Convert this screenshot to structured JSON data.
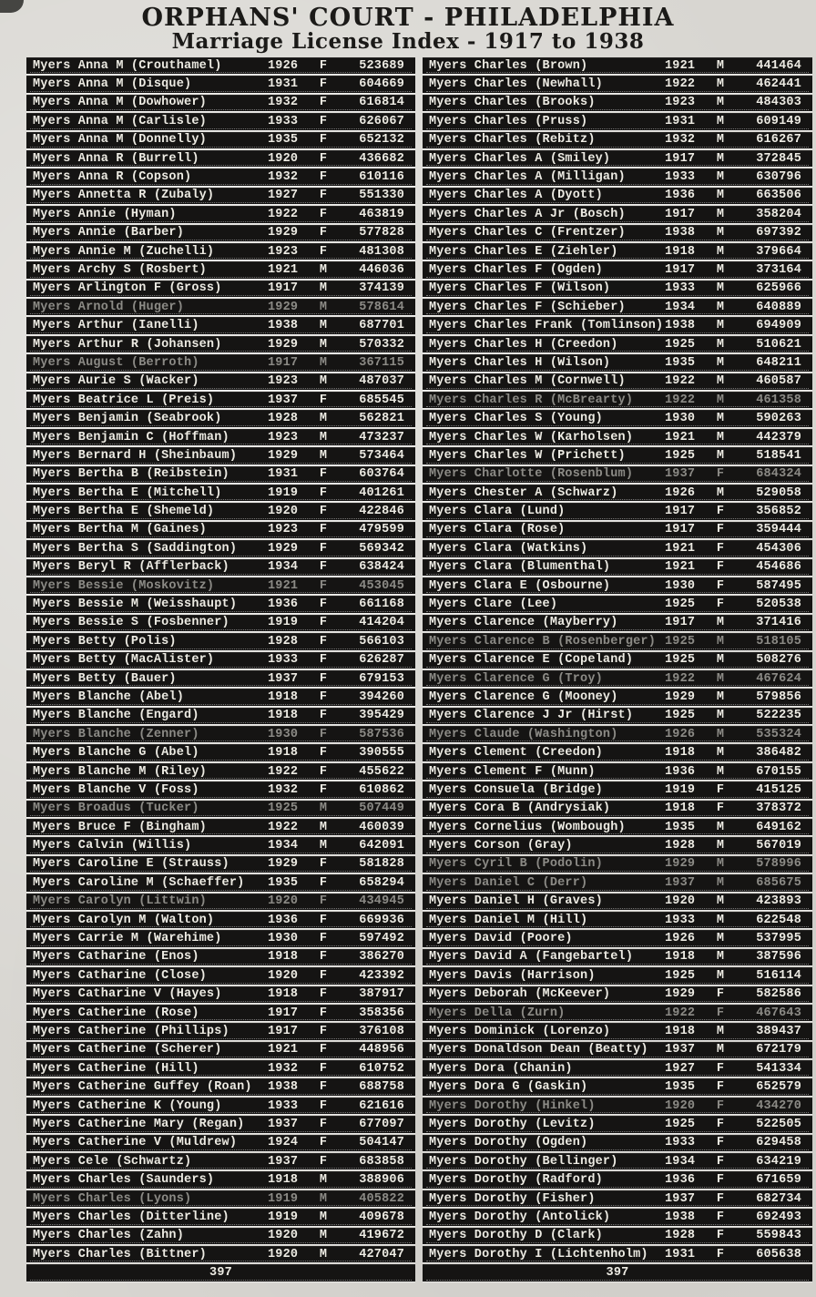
{
  "header": {
    "title": "ORPHANS' COURT - PHILADELPHIA",
    "subtitle": "Marriage License Index - 1917 to 1938"
  },
  "columns": [
    {
      "side": "left",
      "footer_page_number": "397",
      "rows": [
        {
          "name": "Myers Anna M (Crouthamel)",
          "year": "1926",
          "sex": "F",
          "number": "523689"
        },
        {
          "name": "Myers Anna M (Disque)",
          "year": "1931",
          "sex": "F",
          "number": "604669"
        },
        {
          "name": "Myers Anna M (Dowhower)",
          "year": "1932",
          "sex": "F",
          "number": "616814"
        },
        {
          "name": "Myers Anna M (Carlisle)",
          "year": "1933",
          "sex": "F",
          "number": "626067"
        },
        {
          "name": "Myers Anna M (Donnelly)",
          "year": "1935",
          "sex": "F",
          "number": "652132"
        },
        {
          "name": "Myers Anna R (Burrell)",
          "year": "1920",
          "sex": "F",
          "number": "436682"
        },
        {
          "name": "Myers Anna R (Copson)",
          "year": "1932",
          "sex": "F",
          "number": "610116"
        },
        {
          "name": "Myers Annetta R (Zubaly)",
          "year": "1927",
          "sex": "F",
          "number": "551330"
        },
        {
          "name": "Myers Annie (Hyman)",
          "year": "1922",
          "sex": "F",
          "number": "463819"
        },
        {
          "name": "Myers Annie (Barber)",
          "year": "1929",
          "sex": "F",
          "number": "577828"
        },
        {
          "name": "Myers Annie M (Zuchelli)",
          "year": "1923",
          "sex": "F",
          "number": "481308"
        },
        {
          "name": "Myers Archy S (Rosbert)",
          "year": "1921",
          "sex": "M",
          "number": "446036"
        },
        {
          "name": "Myers Arlington F (Gross)",
          "year": "1917",
          "sex": "M",
          "number": "374139"
        },
        {
          "name": "Myers Arnold (Huger)",
          "year": "1929",
          "sex": "M",
          "number": "578614",
          "dim": true
        },
        {
          "name": "Myers Arthur (Ianelli)",
          "year": "1938",
          "sex": "M",
          "number": "687701"
        },
        {
          "name": "Myers Arthur R (Johansen)",
          "year": "1929",
          "sex": "M",
          "number": "570332"
        },
        {
          "name": "Myers August (Berroth)",
          "year": "1917",
          "sex": "M",
          "number": "367115",
          "dim": true
        },
        {
          "name": "Myers Aurie S (Wacker)",
          "year": "1923",
          "sex": "M",
          "number": "487037"
        },
        {
          "name": "Myers Beatrice L (Preis)",
          "year": "1937",
          "sex": "F",
          "number": "685545"
        },
        {
          "name": "Myers Benjamin (Seabrook)",
          "year": "1928",
          "sex": "M",
          "number": "562821"
        },
        {
          "name": "Myers Benjamin C (Hoffman)",
          "year": "1923",
          "sex": "M",
          "number": "473237"
        },
        {
          "name": "Myers Bernard H (Sheinbaum)",
          "year": "1929",
          "sex": "M",
          "number": "573464"
        },
        {
          "name": "Myers Bertha B (Reibstein)",
          "year": "1931",
          "sex": "F",
          "number": "603764"
        },
        {
          "name": "Myers Bertha E (Mitchell)",
          "year": "1919",
          "sex": "F",
          "number": "401261"
        },
        {
          "name": "Myers Bertha E (Shemeld)",
          "year": "1920",
          "sex": "F",
          "number": "422846"
        },
        {
          "name": "Myers Bertha M (Gaines)",
          "year": "1923",
          "sex": "F",
          "number": "479599"
        },
        {
          "name": "Myers Bertha S (Saddington)",
          "year": "1929",
          "sex": "F",
          "number": "569342"
        },
        {
          "name": "Myers Beryl R (Afflerback)",
          "year": "1934",
          "sex": "F",
          "number": "638424"
        },
        {
          "name": "Myers Bessie (Moskovitz)",
          "year": "1921",
          "sex": "F",
          "number": "453045",
          "dim": true
        },
        {
          "name": "Myers Bessie M (Weisshaupt)",
          "year": "1936",
          "sex": "F",
          "number": "661168"
        },
        {
          "name": "Myers Bessie S (Fosbenner)",
          "year": "1919",
          "sex": "F",
          "number": "414204"
        },
        {
          "name": "Myers Betty (Polis)",
          "year": "1928",
          "sex": "F",
          "number": "566103"
        },
        {
          "name": "Myers Betty (MacAlister)",
          "year": "1933",
          "sex": "F",
          "number": "626287"
        },
        {
          "name": "Myers Betty (Bauer)",
          "year": "1937",
          "sex": "F",
          "number": "679153"
        },
        {
          "name": "Myers Blanche (Abel)",
          "year": "1918",
          "sex": "F",
          "number": "394260"
        },
        {
          "name": "Myers Blanche (Engard)",
          "year": "1918",
          "sex": "F",
          "number": "395429"
        },
        {
          "name": "Myers Blanche (Zenner)",
          "year": "1930",
          "sex": "F",
          "number": "587536",
          "dim": true
        },
        {
          "name": "Myers Blanche G (Abel)",
          "year": "1918",
          "sex": "F",
          "number": "390555"
        },
        {
          "name": "Myers Blanche M (Riley)",
          "year": "1922",
          "sex": "F",
          "number": "455622"
        },
        {
          "name": "Myers Blanche V (Foss)",
          "year": "1932",
          "sex": "F",
          "number": "610862"
        },
        {
          "name": "Myers Broadus (Tucker)",
          "year": "1925",
          "sex": "M",
          "number": "507449",
          "dim": true
        },
        {
          "name": "Myers Bruce F (Bingham)",
          "year": "1922",
          "sex": "M",
          "number": "460039"
        },
        {
          "name": "Myers Calvin (Willis)",
          "year": "1934",
          "sex": "M",
          "number": "642091"
        },
        {
          "name": "Myers Caroline E (Strauss)",
          "year": "1929",
          "sex": "F",
          "number": "581828"
        },
        {
          "name": "Myers Caroline M (Schaeffer)",
          "year": "1935",
          "sex": "F",
          "number": "658294"
        },
        {
          "name": "Myers Carolyn (Littwin)",
          "year": "1920",
          "sex": "F",
          "number": "434945",
          "dim": true
        },
        {
          "name": "Myers Carolyn M (Walton)",
          "year": "1936",
          "sex": "F",
          "number": "669936"
        },
        {
          "name": "Myers Carrie M (Warehime)",
          "year": "1930",
          "sex": "F",
          "number": "597492"
        },
        {
          "name": "Myers Catharine (Enos)",
          "year": "1918",
          "sex": "F",
          "number": "386270"
        },
        {
          "name": "Myers Catharine (Close)",
          "year": "1920",
          "sex": "F",
          "number": "423392"
        },
        {
          "name": "Myers Catharine V (Hayes)",
          "year": "1918",
          "sex": "F",
          "number": "387917"
        },
        {
          "name": "Myers Catherine (Rose)",
          "year": "1917",
          "sex": "F",
          "number": "358356"
        },
        {
          "name": "Myers Catherine (Phillips)",
          "year": "1917",
          "sex": "F",
          "number": "376108"
        },
        {
          "name": "Myers Catherine (Scherer)",
          "year": "1921",
          "sex": "F",
          "number": "448956"
        },
        {
          "name": "Myers Catherine (Hill)",
          "year": "1932",
          "sex": "F",
          "number": "610752"
        },
        {
          "name": "Myers Catherine Guffey (Roan)",
          "year": "1938",
          "sex": "F",
          "number": "688758"
        },
        {
          "name": "Myers Catherine K (Young)",
          "year": "1933",
          "sex": "F",
          "number": "621616"
        },
        {
          "name": "Myers Catherine Mary (Regan)",
          "year": "1937",
          "sex": "F",
          "number": "677097"
        },
        {
          "name": "Myers Catherine V (Muldrew)",
          "year": "1924",
          "sex": "F",
          "number": "504147"
        },
        {
          "name": "Myers Cele (Schwartz)",
          "year": "1937",
          "sex": "F",
          "number": "683858"
        },
        {
          "name": "Myers Charles (Saunders)",
          "year": "1918",
          "sex": "M",
          "number": "388906"
        },
        {
          "name": "Myers Charles (Lyons)",
          "year": "1919",
          "sex": "M",
          "number": "405822",
          "dim": true
        },
        {
          "name": "Myers Charles (Ditterline)",
          "year": "1919",
          "sex": "M",
          "number": "409678"
        },
        {
          "name": "Myers Charles (Zahn)",
          "year": "1920",
          "sex": "M",
          "number": "419672"
        },
        {
          "name": "Myers Charles (Bittner)",
          "year": "1920",
          "sex": "M",
          "number": "427047"
        }
      ]
    },
    {
      "side": "right",
      "footer_page_number": "397",
      "rows": [
        {
          "name": "Myers Charles (Brown)",
          "year": "1921",
          "sex": "M",
          "number": "441464"
        },
        {
          "name": "Myers Charles (Newhall)",
          "year": "1922",
          "sex": "M",
          "number": "462441"
        },
        {
          "name": "Myers Charles (Brooks)",
          "year": "1923",
          "sex": "M",
          "number": "484303"
        },
        {
          "name": "Myers Charles (Pruss)",
          "year": "1931",
          "sex": "M",
          "number": "609149"
        },
        {
          "name": "Myers Charles (Rebitz)",
          "year": "1932",
          "sex": "M",
          "number": "616267"
        },
        {
          "name": "Myers Charles A (Smiley)",
          "year": "1917",
          "sex": "M",
          "number": "372845"
        },
        {
          "name": "Myers Charles A (Milligan)",
          "year": "1933",
          "sex": "M",
          "number": "630796"
        },
        {
          "name": "Myers Charles A (Dyott)",
          "year": "1936",
          "sex": "M",
          "number": "663506"
        },
        {
          "name": "Myers Charles A Jr (Bosch)",
          "year": "1917",
          "sex": "M",
          "number": "358204"
        },
        {
          "name": "Myers Charles C (Frentzer)",
          "year": "1938",
          "sex": "M",
          "number": "697392"
        },
        {
          "name": "Myers Charles E (Ziehler)",
          "year": "1918",
          "sex": "M",
          "number": "379664"
        },
        {
          "name": "Myers Charles F (Ogden)",
          "year": "1917",
          "sex": "M",
          "number": "373164"
        },
        {
          "name": "Myers Charles F (Wilson)",
          "year": "1933",
          "sex": "M",
          "number": "625966"
        },
        {
          "name": "Myers Charles F (Schieber)",
          "year": "1934",
          "sex": "M",
          "number": "640889"
        },
        {
          "name": "Myers Charles Frank (Tomlinson)",
          "year": "1938",
          "sex": "M",
          "number": "694909"
        },
        {
          "name": "Myers Charles H (Creedon)",
          "year": "1925",
          "sex": "M",
          "number": "510621"
        },
        {
          "name": "Myers Charles H (Wilson)",
          "year": "1935",
          "sex": "M",
          "number": "648211"
        },
        {
          "name": "Myers Charles M (Cornwell)",
          "year": "1922",
          "sex": "M",
          "number": "460587"
        },
        {
          "name": "Myers Charles R (McBrearty)",
          "year": "1922",
          "sex": "M",
          "number": "461358",
          "dim": true
        },
        {
          "name": "Myers Charles S (Young)",
          "year": "1930",
          "sex": "M",
          "number": "590263"
        },
        {
          "name": "Myers Charles W (Karholsen)",
          "year": "1921",
          "sex": "M",
          "number": "442379"
        },
        {
          "name": "Myers Charles W (Prichett)",
          "year": "1925",
          "sex": "M",
          "number": "518541"
        },
        {
          "name": "Myers Charlotte (Rosenblum)",
          "year": "1937",
          "sex": "F",
          "number": "684324",
          "dim": true
        },
        {
          "name": "Myers Chester A (Schwarz)",
          "year": "1926",
          "sex": "M",
          "number": "529058"
        },
        {
          "name": "Myers Clara (Lund)",
          "year": "1917",
          "sex": "F",
          "number": "356852"
        },
        {
          "name": "Myers Clara (Rose)",
          "year": "1917",
          "sex": "F",
          "number": "359444"
        },
        {
          "name": "Myers Clara (Watkins)",
          "year": "1921",
          "sex": "F",
          "number": "454306"
        },
        {
          "name": "Myers Clara (Blumenthal)",
          "year": "1921",
          "sex": "F",
          "number": "454686"
        },
        {
          "name": "Myers Clara E (Osbourne)",
          "year": "1930",
          "sex": "F",
          "number": "587495"
        },
        {
          "name": "Myers Clare (Lee)",
          "year": "1925",
          "sex": "F",
          "number": "520538"
        },
        {
          "name": "Myers Clarence (Mayberry)",
          "year": "1917",
          "sex": "M",
          "number": "371416"
        },
        {
          "name": "Myers Clarence B (Rosenberger)",
          "year": "1925",
          "sex": "M",
          "number": "518105",
          "dim": true
        },
        {
          "name": "Myers Clarence E (Copeland)",
          "year": "1925",
          "sex": "M",
          "number": "508276"
        },
        {
          "name": "Myers Clarence G (Troy)",
          "year": "1922",
          "sex": "M",
          "number": "467624",
          "dim": true
        },
        {
          "name": "Myers Clarence G (Mooney)",
          "year": "1929",
          "sex": "M",
          "number": "579856"
        },
        {
          "name": "Myers Clarence J Jr (Hirst)",
          "year": "1925",
          "sex": "M",
          "number": "522235"
        },
        {
          "name": "Myers Claude (Washington)",
          "year": "1926",
          "sex": "M",
          "number": "535324",
          "dim": true
        },
        {
          "name": "Myers Clement (Creedon)",
          "year": "1918",
          "sex": "M",
          "number": "386482"
        },
        {
          "name": "Myers Clement F (Munn)",
          "year": "1936",
          "sex": "M",
          "number": "670155"
        },
        {
          "name": "Myers Consuela (Bridge)",
          "year": "1919",
          "sex": "F",
          "number": "415125"
        },
        {
          "name": "Myers Cora B (Andrysiak)",
          "year": "1918",
          "sex": "F",
          "number": "378372"
        },
        {
          "name": "Myers Cornelius (Wombough)",
          "year": "1935",
          "sex": "M",
          "number": "649162"
        },
        {
          "name": "Myers Corson (Gray)",
          "year": "1928",
          "sex": "M",
          "number": "567019"
        },
        {
          "name": "Myers Cyril B (Podolin)",
          "year": "1929",
          "sex": "M",
          "number": "578996",
          "dim": true
        },
        {
          "name": "Myers Daniel C (Derr)",
          "year": "1937",
          "sex": "M",
          "number": "685675",
          "dim": true
        },
        {
          "name": "Myers Daniel H (Graves)",
          "year": "1920",
          "sex": "M",
          "number": "423893"
        },
        {
          "name": "Myers Daniel M (Hill)",
          "year": "1933",
          "sex": "M",
          "number": "622548"
        },
        {
          "name": "Myers David (Poore)",
          "year": "1926",
          "sex": "M",
          "number": "537995"
        },
        {
          "name": "Myers David A (Fangebartel)",
          "year": "1918",
          "sex": "M",
          "number": "387596"
        },
        {
          "name": "Myers Davis (Harrison)",
          "year": "1925",
          "sex": "M",
          "number": "516114"
        },
        {
          "name": "Myers Deborah (McKeever)",
          "year": "1929",
          "sex": "F",
          "number": "582586"
        },
        {
          "name": "Myers Della (Zurn)",
          "year": "1922",
          "sex": "F",
          "number": "467643",
          "dim": true
        },
        {
          "name": "Myers Dominick (Lorenzo)",
          "year": "1918",
          "sex": "M",
          "number": "389437"
        },
        {
          "name": "Myers Donaldson Dean (Beatty)",
          "year": "1937",
          "sex": "M",
          "number": "672179"
        },
        {
          "name": "Myers Dora (Chanin)",
          "year": "1927",
          "sex": "F",
          "number": "541334"
        },
        {
          "name": "Myers Dora G (Gaskin)",
          "year": "1935",
          "sex": "F",
          "number": "652579"
        },
        {
          "name": "Myers Dorothy (Hinkel)",
          "year": "1920",
          "sex": "F",
          "number": "434270",
          "dim": true
        },
        {
          "name": "Myers Dorothy (Levitz)",
          "year": "1925",
          "sex": "F",
          "number": "522505"
        },
        {
          "name": "Myers Dorothy (Ogden)",
          "year": "1933",
          "sex": "F",
          "number": "629458"
        },
        {
          "name": "Myers Dorothy (Bellinger)",
          "year": "1934",
          "sex": "F",
          "number": "634219"
        },
        {
          "name": "Myers Dorothy (Radford)",
          "year": "1936",
          "sex": "F",
          "number": "671659"
        },
        {
          "name": "Myers Dorothy (Fisher)",
          "year": "1937",
          "sex": "F",
          "number": "682734"
        },
        {
          "name": "Myers Dorothy (Antolick)",
          "year": "1938",
          "sex": "F",
          "number": "692493"
        },
        {
          "name": "Myers Dorothy D (Clark)",
          "year": "1928",
          "sex": "F",
          "number": "559843"
        },
        {
          "name": "Myers Dorothy I (Lichtenholm)",
          "year": "1931",
          "sex": "F",
          "number": "605638"
        }
      ]
    }
  ],
  "colors": {
    "paper": "#d8d6d1",
    "row_background": "#151413",
    "row_text": "#edebe3",
    "header_text": "#1b1a18"
  }
}
